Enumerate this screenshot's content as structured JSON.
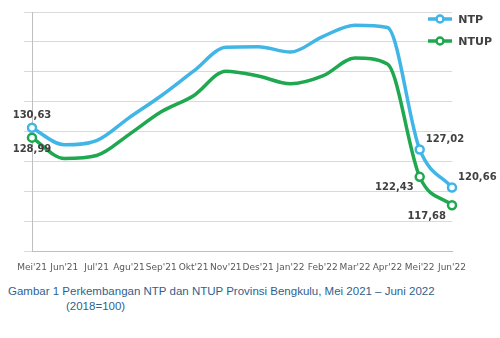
{
  "chart_data": {
    "type": "line",
    "title": "Gambar 1 Perkembangan NTP dan NTUP Provinsi Bengkulu, Mei 2021 – Juni 2022 (2018=100)",
    "categories": [
      "Mei'21",
      "Jun'21",
      "Jul'21",
      "Agu'21",
      "Sep'21",
      "Okt'21",
      "Nov'21",
      "Des'21",
      "Jan'22",
      "Feb'22",
      "Mar'22",
      "Apr'22",
      "Mei'22",
      "Jun'22"
    ],
    "series": [
      {
        "name": "NTP",
        "color": "#41b6e6",
        "values": [
          130.63,
          127.8,
          128.5,
          132.3,
          136.0,
          140.1,
          144.1,
          144.2,
          143.3,
          145.9,
          147.8,
          147.4,
          127.02,
          120.66
        ],
        "value_labels": [
          "130,63",
          null,
          null,
          null,
          null,
          null,
          null,
          null,
          null,
          null,
          null,
          null,
          "127,02",
          "120,66"
        ]
      },
      {
        "name": "NTUP",
        "color": "#1fa84f",
        "values": [
          128.99,
          125.5,
          126.0,
          129.5,
          133.3,
          136.0,
          140.1,
          139.3,
          138.0,
          139.3,
          142.3,
          141.3,
          122.43,
          117.68
        ],
        "value_labels": [
          "128,99",
          null,
          null,
          null,
          null,
          null,
          null,
          null,
          null,
          null,
          null,
          null,
          "122,43",
          "117,68"
        ]
      }
    ],
    "ylim": [
      110,
      150
    ],
    "yticks": [
      110,
      115,
      120,
      125,
      130,
      135,
      140,
      145,
      150
    ],
    "grid": true,
    "tick_labels": "x",
    "legend": "upper right",
    "data_labels": true,
    "marker": "circle"
  }
}
